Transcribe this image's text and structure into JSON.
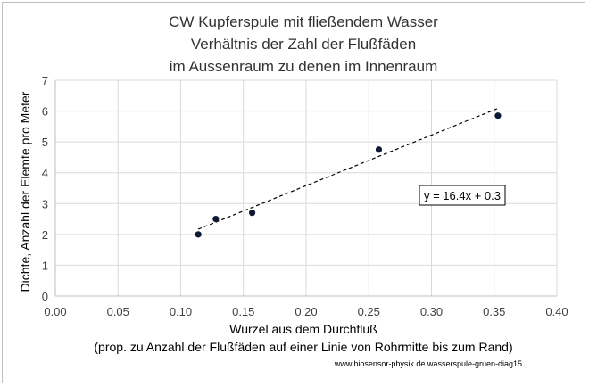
{
  "chart_data": {
    "type": "scatter",
    "title_lines": [
      "CW Kupferspule mit fließendem Wasser",
      "Verhältnis der Zahl der Flußfäden",
      "im Aussenraum zu denen im Innenraum"
    ],
    "xlabel": "Wurzel aus dem Durchfluß",
    "xlabel_sub": "(prop. zu Anzahl der Flußfäden auf einer Linie von Rohrmitte bis zum Rand)",
    "ylabel": "Dichte, Anzahl der Elemte pro Meter",
    "xlim": [
      0,
      0.4
    ],
    "ylim": [
      0,
      7
    ],
    "x_ticks": [
      0,
      0.05,
      0.1,
      0.15,
      0.2,
      0.25,
      0.3,
      0.35,
      0.4
    ],
    "x_tick_labels": [
      "0.00",
      "0.05",
      "0.10",
      "0.15",
      "0.20",
      "0.25",
      "0.30",
      "0.35",
      "0.40"
    ],
    "y_ticks": [
      0,
      1,
      2,
      3,
      4,
      5,
      6,
      7
    ],
    "y_tick_labels": [
      "0",
      "1",
      "2",
      "3",
      "4",
      "5",
      "6",
      "7"
    ],
    "grid": true,
    "series": [
      {
        "x": [
          0.114,
          0.128,
          0.157,
          0.258,
          0.353
        ],
        "y": [
          2.0,
          2.5,
          2.7,
          4.75,
          5.85
        ],
        "color": "#0d1a33"
      }
    ],
    "trendline": {
      "slope": 16.4,
      "intercept": 0.3,
      "x_range": [
        0.114,
        0.353
      ],
      "equation_label": "y = 16.4x + 0.3",
      "style": "dashed",
      "color": "#000000"
    },
    "credit": "www.biosensor-physik.de  wasserspule-gruen-diag15"
  }
}
